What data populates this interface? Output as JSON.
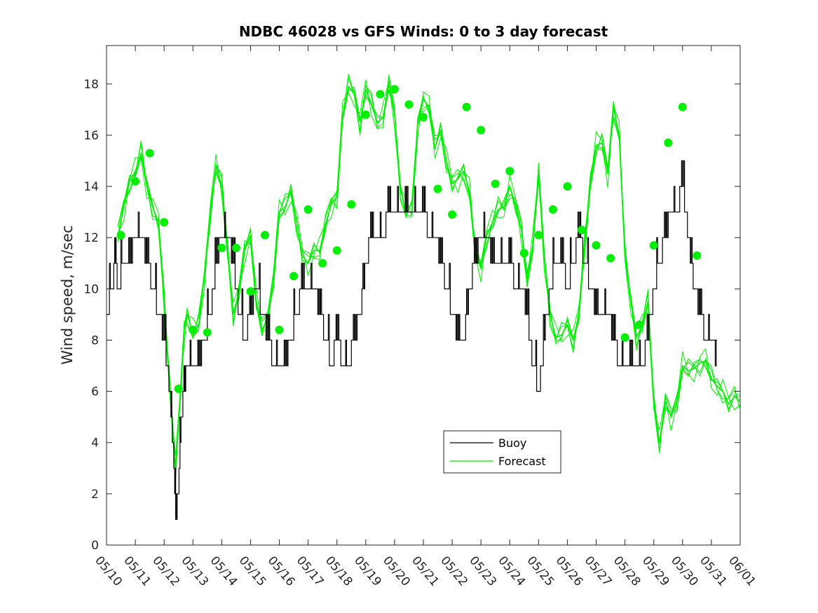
{
  "chart_data": {
    "type": "line",
    "title": "NDBC 46028 vs GFS Winds: 0 to 3 day forecast",
    "xlabel": "",
    "ylabel": "Wind speed, m/sec",
    "xlim": [
      "05/10",
      "06/01"
    ],
    "ylim": [
      0,
      19.5
    ],
    "x_tick_labels": [
      "05/10",
      "05/11",
      "05/12",
      "05/13",
      "05/14",
      "05/15",
      "05/16",
      "05/17",
      "05/18",
      "05/19",
      "05/20",
      "05/21",
      "05/22",
      "05/23",
      "05/24",
      "05/25",
      "05/26",
      "05/27",
      "05/28",
      "05/29",
      "05/30",
      "05/31",
      "06/01"
    ],
    "y_ticks": [
      0,
      2,
      4,
      6,
      8,
      10,
      12,
      14,
      16,
      18
    ],
    "grid": false,
    "legend": {
      "placement": "lower-center",
      "entries": [
        "Buoy",
        "Forecast"
      ]
    },
    "colors": {
      "buoy": "#000000",
      "forecast": "#00ee00",
      "axes": "#262626"
    },
    "series": [
      {
        "name": "Buoy",
        "x_days": [
          0,
          0.2,
          0.3,
          0.4,
          0.6,
          0.8,
          1.0,
          1.2,
          1.4,
          1.6,
          1.8,
          2.0,
          2.2,
          2.3,
          2.4,
          2.5,
          2.6,
          2.7,
          2.8,
          3.0,
          3.2,
          3.4,
          3.6,
          3.8,
          4.0,
          4.2,
          4.4,
          4.6,
          4.8,
          5.0,
          5.2,
          5.4,
          5.6,
          5.8,
          6.0,
          6.2,
          6.4,
          6.6,
          6.8,
          7.0,
          7.2,
          7.4,
          7.6,
          7.8,
          8.0,
          8.2,
          8.4,
          8.6,
          8.8,
          9.0,
          9.2,
          9.4,
          9.6,
          9.8,
          10.0,
          10.2,
          10.4,
          10.6,
          10.8,
          11.0,
          11.2,
          11.4,
          11.6,
          11.8,
          12.0,
          12.2,
          12.4,
          12.6,
          12.8,
          13.0,
          13.2,
          13.4,
          13.6,
          13.8,
          14.0,
          14.2,
          14.4,
          14.6,
          14.8,
          15.0,
          15.2,
          15.4,
          15.6,
          15.8,
          16.0,
          16.2,
          16.4,
          16.6,
          16.8,
          17.0,
          17.2,
          17.4,
          17.6,
          17.8,
          18.0,
          18.2,
          18.4,
          18.6,
          18.8,
          19.0,
          19.2,
          19.4,
          19.6,
          19.8,
          20.0,
          20.2,
          20.4,
          20.6,
          20.8,
          21.0,
          21.2
        ],
        "values": [
          9,
          10,
          11,
          10,
          11,
          11,
          12,
          12,
          11,
          10,
          9,
          8,
          6,
          4,
          1,
          2,
          5,
          6,
          7,
          7,
          7,
          8,
          9,
          11,
          12,
          12,
          11,
          9,
          8,
          9,
          10,
          9,
          8,
          7,
          7,
          7,
          8,
          9,
          10,
          10,
          10,
          9,
          8,
          7,
          8,
          7,
          7,
          8,
          9,
          11,
          12,
          12,
          12,
          13,
          13,
          13,
          13,
          13,
          13,
          13,
          12,
          12,
          11,
          10,
          9,
          8,
          8,
          10,
          11,
          12,
          12,
          11,
          11,
          11,
          11,
          10,
          10,
          9,
          7,
          6,
          8,
          10,
          11,
          11,
          10,
          11,
          12,
          11,
          10,
          9,
          9,
          9,
          8,
          7,
          7,
          7,
          7,
          7,
          8,
          10,
          11,
          12,
          13,
          13,
          14,
          12,
          10,
          9,
          8,
          8,
          7
        ]
      },
      {
        "name": "Forecast",
        "x_days": [
          0.4,
          0.6,
          0.8,
          1.0,
          1.2,
          1.4,
          1.6,
          1.8,
          2.0,
          2.2,
          2.4,
          2.6,
          2.7,
          2.8,
          3.0,
          3.2,
          3.4,
          3.6,
          3.8,
          4.0,
          4.2,
          4.4,
          4.6,
          4.8,
          5.0,
          5.2,
          5.4,
          5.6,
          5.8,
          6.0,
          6.2,
          6.4,
          6.6,
          6.8,
          7.0,
          7.2,
          7.4,
          7.6,
          7.8,
          8.0,
          8.2,
          8.4,
          8.6,
          8.8,
          9.0,
          9.2,
          9.4,
          9.6,
          9.8,
          10.0,
          10.2,
          10.4,
          10.6,
          10.8,
          11.0,
          11.2,
          11.4,
          11.6,
          11.8,
          12.0,
          12.2,
          12.4,
          12.6,
          12.8,
          13.0,
          13.2,
          13.4,
          13.6,
          13.8,
          14.0,
          14.2,
          14.4,
          14.6,
          14.8,
          15.0,
          15.2,
          15.4,
          15.6,
          15.8,
          16.0,
          16.2,
          16.4,
          16.6,
          16.8,
          17.0,
          17.2,
          17.4,
          17.6,
          17.8,
          18.0,
          18.2,
          18.4,
          18.6,
          18.8,
          19.0,
          19.2,
          19.4,
          19.6,
          19.8,
          20.0,
          20.2,
          20.4,
          20.6,
          20.8,
          21.0,
          21.2,
          21.4,
          21.6,
          21.8,
          22.0
        ],
        "values": [
          12.1,
          13.2,
          14.2,
          14.6,
          15.3,
          14.0,
          13.2,
          12.6,
          9.5,
          6.1,
          3.0,
          6.5,
          8.4,
          9.0,
          8.3,
          8.6,
          10.5,
          13.0,
          14.8,
          14.0,
          11.6,
          9.0,
          9.9,
          11.5,
          12.1,
          9.5,
          8.4,
          8.9,
          10.5,
          13.0,
          13.2,
          13.8,
          12.6,
          11.3,
          11.0,
          11.5,
          11.5,
          12.5,
          13.3,
          13.6,
          16.8,
          17.9,
          17.6,
          16.5,
          17.8,
          17.2,
          16.5,
          16.7,
          18.0,
          16.8,
          13.9,
          13.0,
          13.0,
          16.4,
          17.4,
          17.1,
          15.5,
          16.2,
          15.0,
          14.1,
          14.3,
          14.6,
          13.8,
          11.4,
          10.8,
          12.1,
          12.6,
          13.1,
          13.2,
          14.0,
          13.3,
          12.3,
          10.4,
          11.7,
          14.5,
          11.2,
          9.0,
          8.1,
          8.2,
          8.6,
          8.0,
          9.0,
          11.7,
          14.2,
          15.6,
          15.7,
          14.5,
          17.1,
          16.0,
          11.3,
          9.5,
          8.1,
          8.6,
          9.5,
          5.6,
          4.0,
          5.6,
          5.0,
          5.6,
          7.0,
          6.8,
          6.9,
          7.1,
          7.2,
          6.5,
          6.2,
          6.0,
          5.5,
          5.8,
          5.6
        ]
      }
    ],
    "forecast_marker_x_days": [
      0.5,
      1.0,
      1.5,
      2.0,
      2.5,
      3.0,
      3.5,
      4.0,
      4.5,
      5.0,
      5.5,
      6.0,
      6.5,
      7.0,
      7.5,
      8.0,
      8.5,
      9.0,
      9.5,
      10.0,
      10.5,
      11.0,
      11.5,
      12.0,
      12.5,
      13.0,
      13.5,
      14.0,
      14.5,
      15.0,
      15.5,
      16.0,
      16.5,
      17.0,
      17.5,
      18.0,
      18.5,
      19.0,
      19.5,
      20.0,
      20.5
    ],
    "forecast_marker_values": [
      12.1,
      14.2,
      15.3,
      12.6,
      6.1,
      8.4,
      8.3,
      11.6,
      11.6,
      9.9,
      12.1,
      8.4,
      10.5,
      13.1,
      11.0,
      11.5,
      13.3,
      16.8,
      17.6,
      17.8,
      17.2,
      16.7,
      13.9,
      12.9,
      17.1,
      16.2,
      14.1,
      14.6,
      11.4,
      12.1,
      13.1,
      14.0,
      12.3,
      11.7,
      11.2,
      8.1,
      8.6,
      11.7,
      15.7,
      17.1,
      11.3
    ]
  }
}
